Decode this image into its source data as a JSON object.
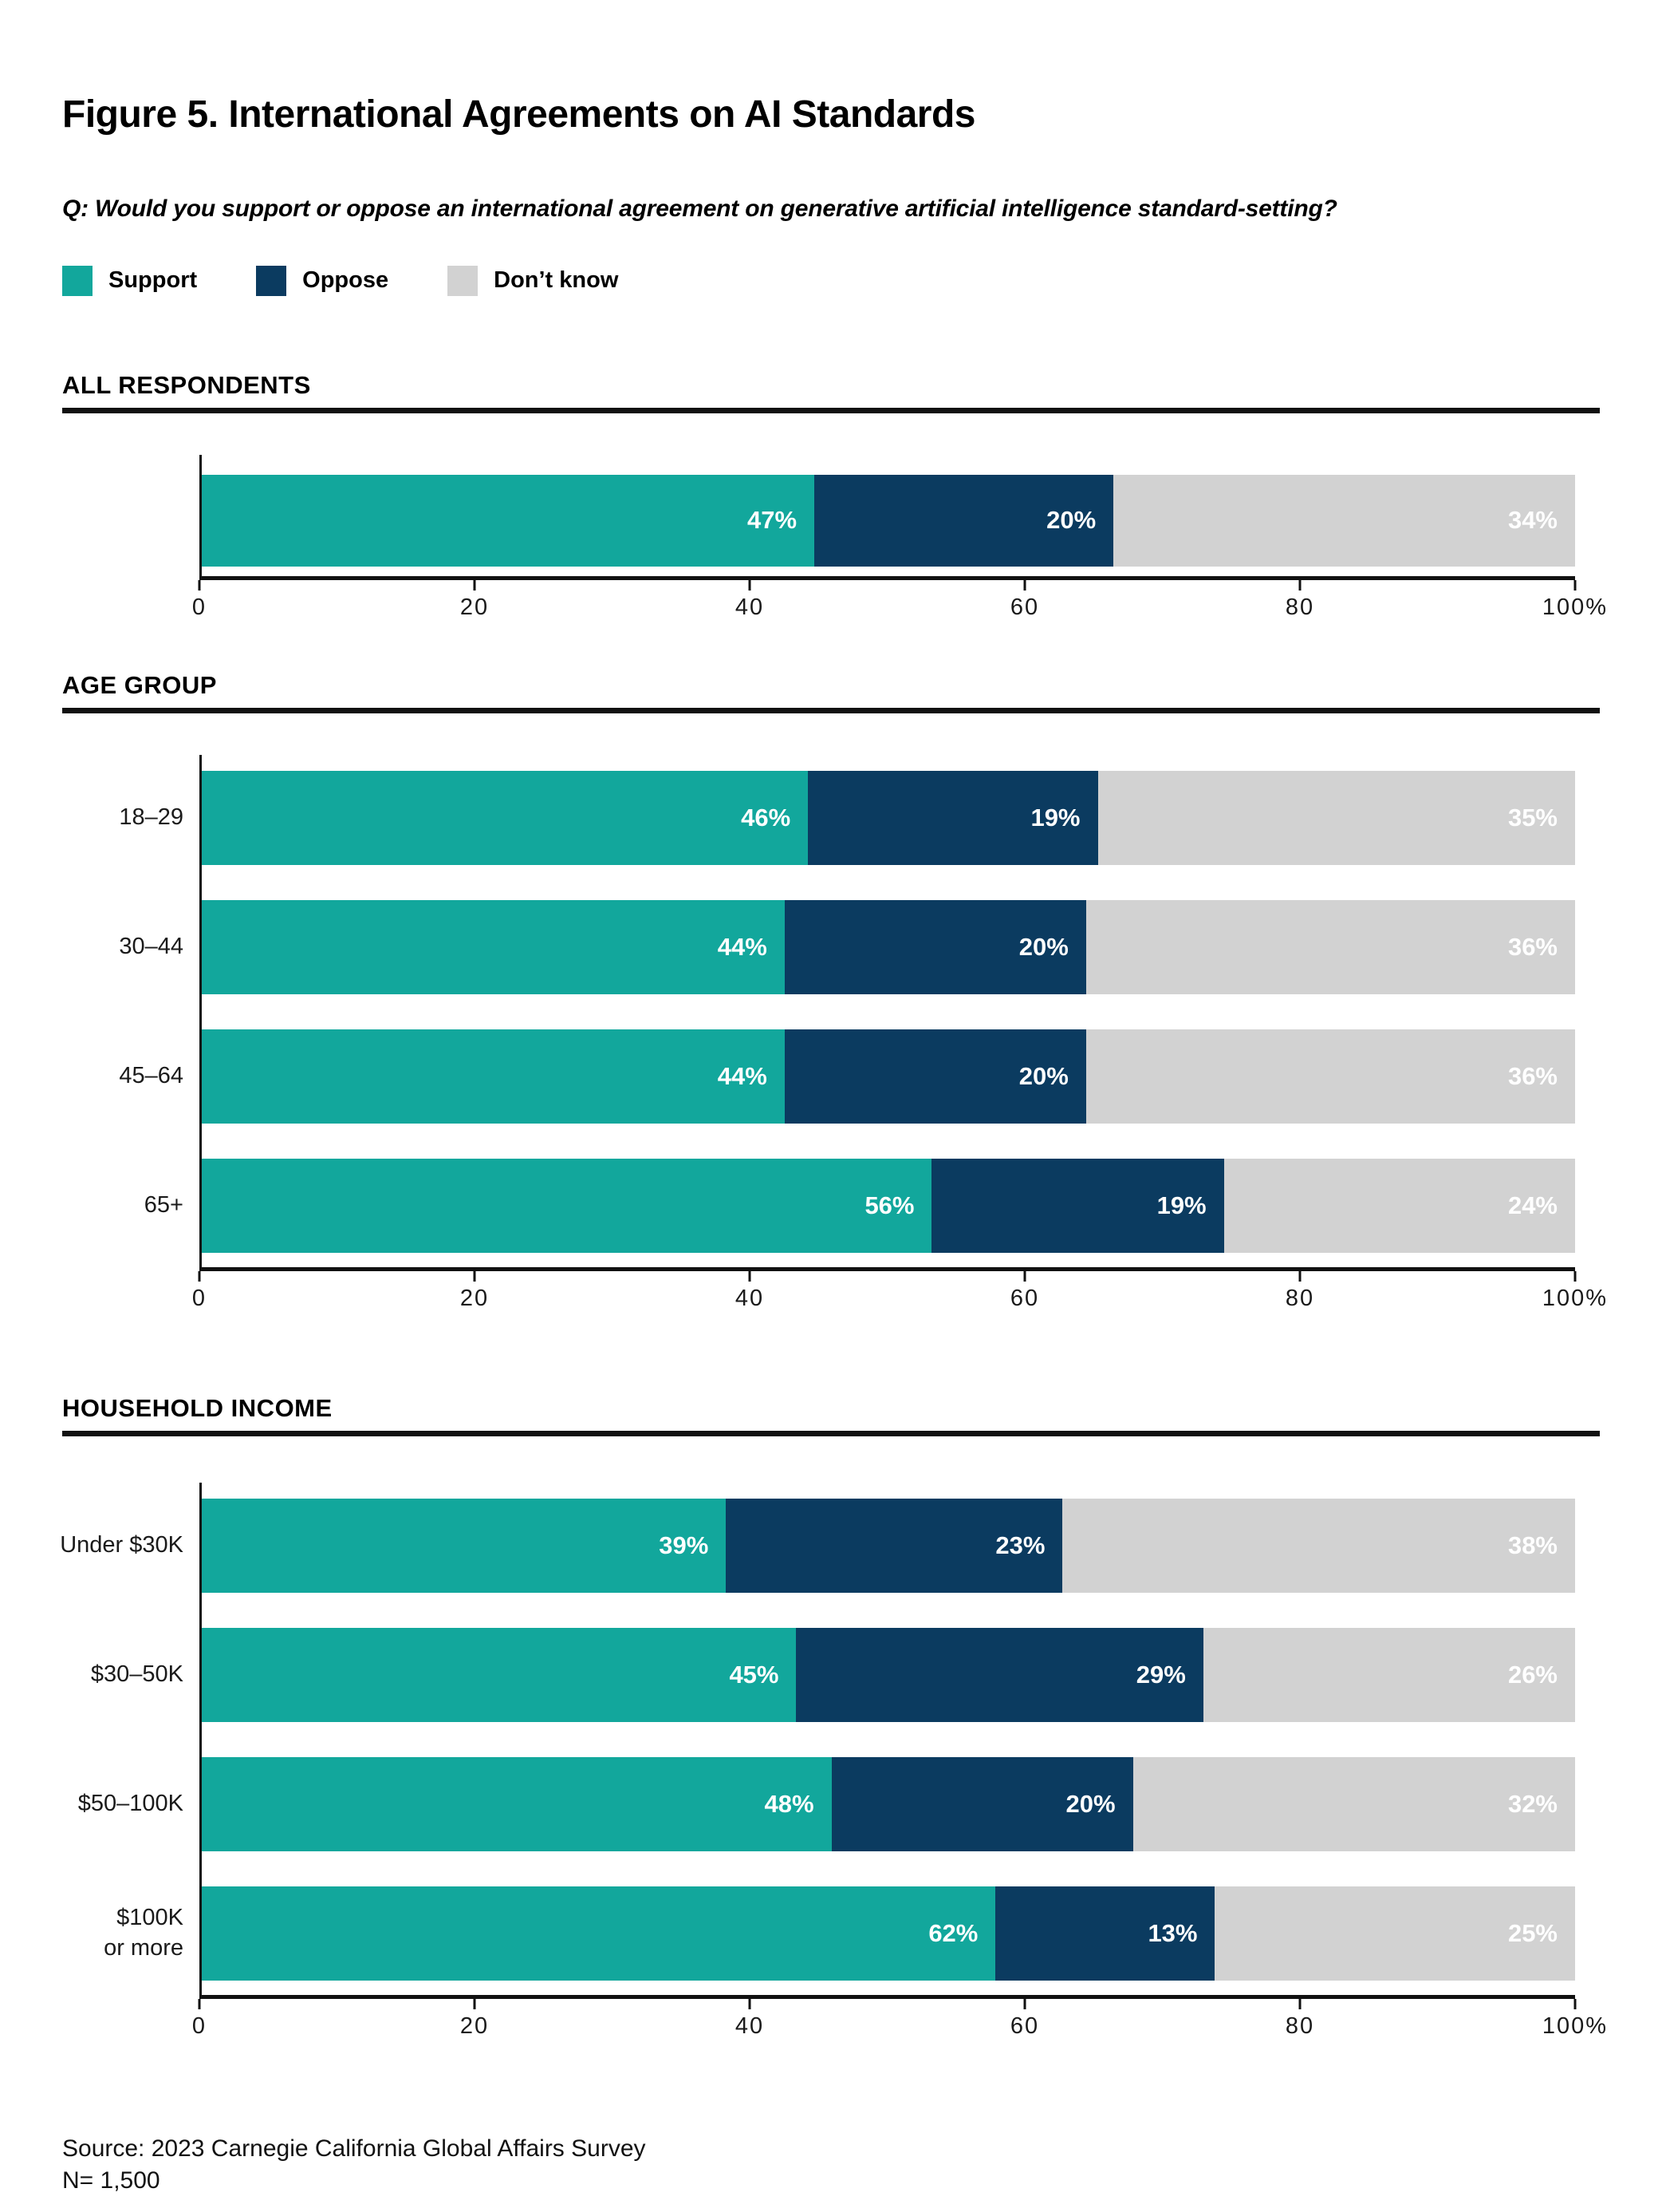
{
  "title": "Figure 5. International Agreements on AI Standards",
  "question": "Q: Would you support or oppose an international agreement on generative artificial intelligence standard-setting?",
  "value_suffix": "%",
  "legend": [
    {
      "key": "support",
      "label": "Support",
      "color": "#12A79C"
    },
    {
      "key": "oppose",
      "label": "Oppose",
      "color": "#0B3B60"
    },
    {
      "key": "dont-know",
      "label": "Don’t know",
      "color": "#D2D2D2"
    }
  ],
  "axis": {
    "ticks": [
      {
        "label": "0",
        "pos": 0
      },
      {
        "label": "20",
        "pos": 20
      },
      {
        "label": "40",
        "pos": 40
      },
      {
        "label": "60",
        "pos": 60
      },
      {
        "label": "80",
        "pos": 80
      },
      {
        "label": "100%",
        "pos": 100
      }
    ]
  },
  "sections": [
    {
      "header": "ALL RESPONDENTS",
      "rows": [
        {
          "label": "",
          "values": [
            47,
            20,
            34
          ]
        }
      ]
    },
    {
      "header": "AGE GROUP",
      "rows": [
        {
          "label": "18–29",
          "values": [
            46,
            19,
            35
          ]
        },
        {
          "label": "30–44",
          "values": [
            44,
            20,
            36
          ]
        },
        {
          "label": "45–64",
          "values": [
            44,
            20,
            36
          ]
        },
        {
          "label": "65+",
          "values": [
            56,
            19,
            24
          ]
        }
      ]
    },
    {
      "header": "HOUSEHOLD INCOME",
      "rows": [
        {
          "label": "Under $30K",
          "values": [
            39,
            23,
            38
          ]
        },
        {
          "label": "$30–50K",
          "values": [
            45,
            29,
            26
          ]
        },
        {
          "label": "$50–100K",
          "values": [
            48,
            20,
            32
          ]
        },
        {
          "label": [
            "$100K",
            "or more"
          ],
          "values": [
            62,
            13,
            25
          ]
        }
      ]
    }
  ],
  "footer": {
    "source": "Source: 2023 Carnegie California Global Affairs Survey",
    "n": "N= 1,500"
  },
  "chart_data": {
    "type": "bar",
    "orientation": "horizontal-stacked",
    "title": "Figure 5. International Agreements on AI Standards",
    "question": "Q: Would you support or oppose an international agreement on generative artificial intelligence standard-setting?",
    "series": [
      "Support",
      "Oppose",
      "Don’t know"
    ],
    "unit": "%",
    "xlim": [
      0,
      100
    ],
    "xticks": [
      0,
      20,
      40,
      60,
      80,
      100
    ],
    "legend_position": "top-left",
    "series_colors": {
      "Support": "#12A79C",
      "Oppose": "#0B3B60",
      "Don’t know": "#D2D2D2"
    },
    "groups": [
      {
        "section": "ALL RESPONDENTS",
        "category": "All respondents",
        "support": 47,
        "oppose": 20,
        "dont_know": 34
      },
      {
        "section": "AGE GROUP",
        "category": "18–29",
        "support": 46,
        "oppose": 19,
        "dont_know": 35
      },
      {
        "section": "AGE GROUP",
        "category": "30–44",
        "support": 44,
        "oppose": 20,
        "dont_know": 36
      },
      {
        "section": "AGE GROUP",
        "category": "45–64",
        "support": 44,
        "oppose": 20,
        "dont_know": 36
      },
      {
        "section": "AGE GROUP",
        "category": "65+",
        "support": 56,
        "oppose": 19,
        "dont_know": 24
      },
      {
        "section": "HOUSEHOLD INCOME",
        "category": "Under $30K",
        "support": 39,
        "oppose": 23,
        "dont_know": 38
      },
      {
        "section": "HOUSEHOLD INCOME",
        "category": "$30–50K",
        "support": 45,
        "oppose": 29,
        "dont_know": 26
      },
      {
        "section": "HOUSEHOLD INCOME",
        "category": "$50–100K",
        "support": 48,
        "oppose": 20,
        "dont_know": 32
      },
      {
        "section": "HOUSEHOLD INCOME",
        "category": "$100K or more",
        "support": 62,
        "oppose": 13,
        "dont_know": 25
      }
    ],
    "source": "Source: 2023 Carnegie California Global Affairs Survey",
    "n": "N= 1,500"
  }
}
